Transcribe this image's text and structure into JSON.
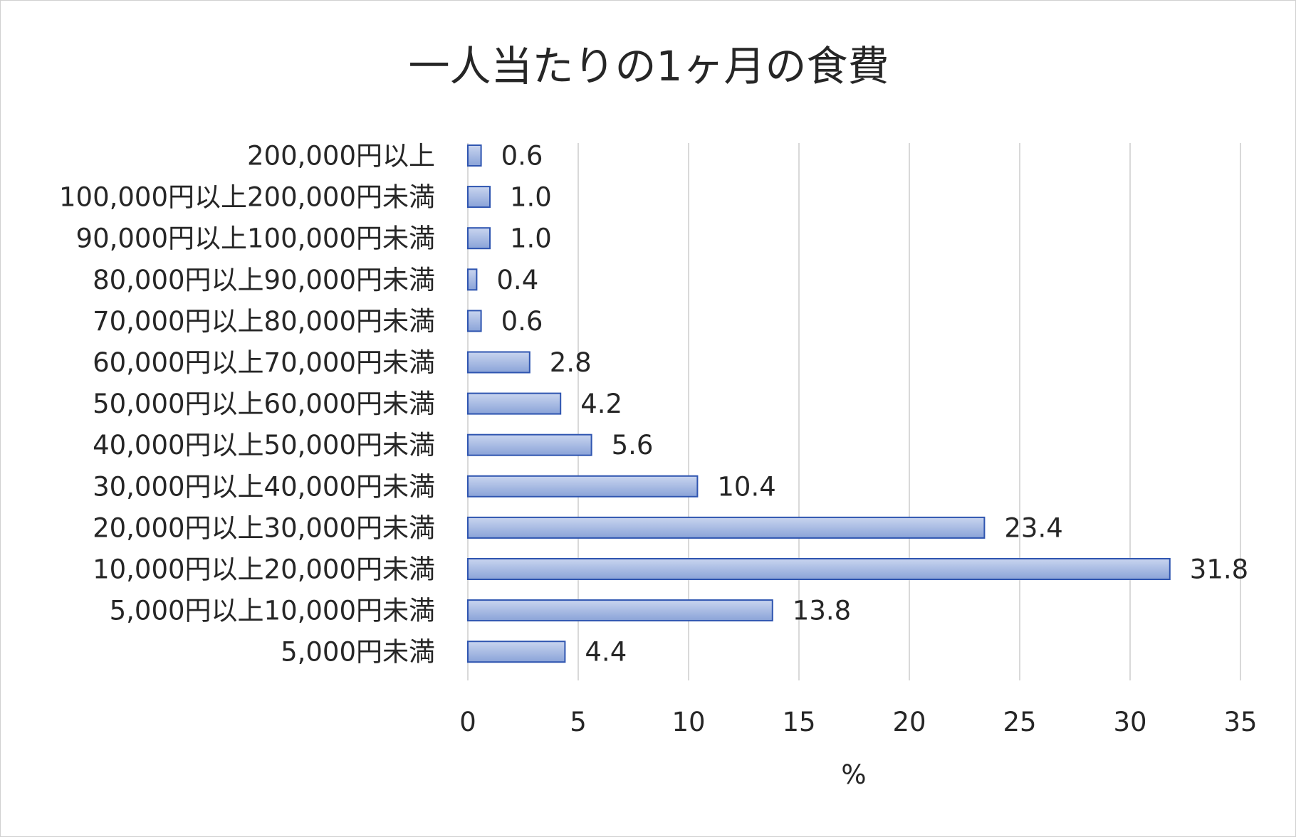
{
  "chart_data": {
    "type": "bar",
    "orientation": "horizontal",
    "title": "一人当たりの1ヶ月の食費",
    "xlabel": "%",
    "ylabel": "",
    "xlim": [
      0,
      35
    ],
    "xticks": [
      0,
      5,
      10,
      15,
      20,
      25,
      30,
      35
    ],
    "grid": true,
    "legend": "none",
    "categories": [
      "200,000円以上",
      "100,000円以上200,000円未満",
      "90,000円以上100,000円未満",
      "80,000円以上90,000円未満",
      "70,000円以上80,000円未満",
      "60,000円以上70,000円未満",
      "50,000円以上60,000円未満",
      "40,000円以上50,000円未満",
      "30,000円以上40,000円未満",
      "20,000円以上30,000円未満",
      "10,000円以上20,000円未満",
      "5,000円以上10,000円未満",
      "5,000円未満"
    ],
    "values": [
      0.6,
      1.0,
      1.0,
      0.4,
      0.6,
      2.8,
      4.2,
      5.6,
      10.4,
      23.4,
      31.8,
      13.8,
      4.4
    ],
    "value_labels": [
      "0.6",
      "1.0",
      "1.0",
      "0.4",
      "0.6",
      "2.8",
      "4.2",
      "5.6",
      "10.4",
      "23.4",
      "31.8",
      "13.8",
      "4.4"
    ],
    "colors": {
      "bar_fill_top": "#c9d5ef",
      "bar_fill_bottom": "#8aa3d8",
      "bar_stroke": "#2f55b0",
      "gridline": "#d9d9d9",
      "text": "#262626"
    }
  }
}
